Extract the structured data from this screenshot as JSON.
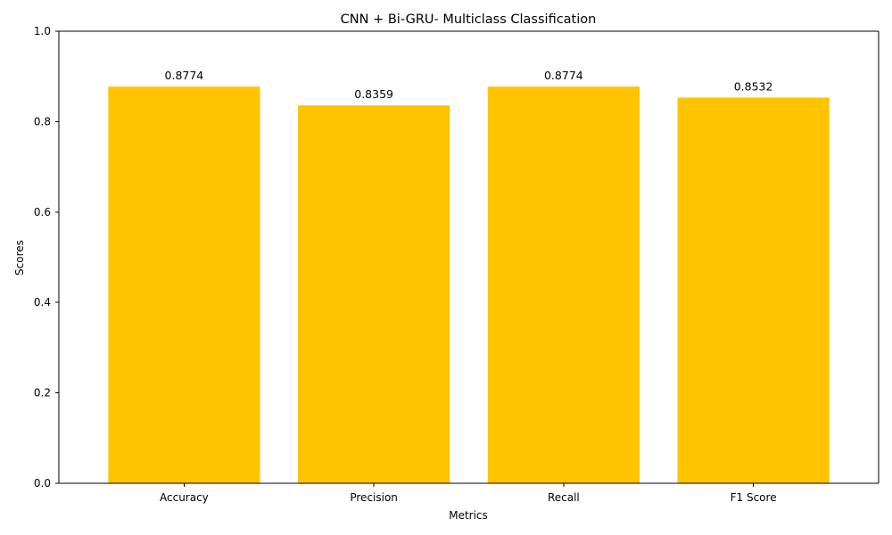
{
  "chart_data": {
    "type": "bar",
    "title": "CNN + Bi-GRU- Multiclass Classification",
    "xlabel": "Metrics",
    "ylabel": "Scores",
    "categories": [
      "Accuracy",
      "Precision",
      "Recall",
      "F1 Score"
    ],
    "values": [
      0.8774,
      0.8359,
      0.8774,
      0.8532
    ],
    "value_labels": [
      "0.8774",
      "0.8359",
      "0.8774",
      "0.8532"
    ],
    "ylim": [
      0,
      1.0
    ],
    "yticks": [
      0.0,
      0.2,
      0.4,
      0.6,
      0.8,
      1.0
    ],
    "ytick_labels": [
      "0.0",
      "0.2",
      "0.4",
      "0.6",
      "0.8",
      "1.0"
    ],
    "grid": false,
    "legend": false,
    "bar_color": "#ffc300"
  }
}
